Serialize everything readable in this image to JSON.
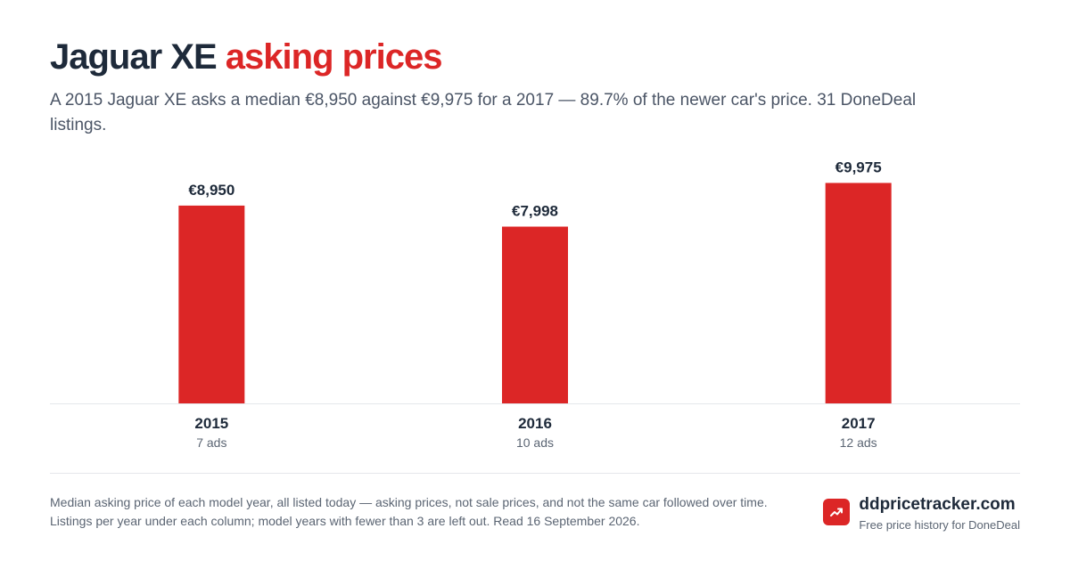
{
  "header": {
    "title_main": "Jaguar XE",
    "title_accent": "asking prices",
    "subtitle": "A 2015 Jaguar XE asks a median €8,950 against €9,975 for a 2017 — 89.7% of the newer car's price. 31 DoneDeal listings."
  },
  "chart_data": {
    "type": "bar",
    "categories": [
      "2015",
      "2016",
      "2017"
    ],
    "values": [
      8950,
      7998,
      9975
    ],
    "value_labels": [
      "€8,950",
      "€7,998",
      "€9,975"
    ],
    "sublabels": [
      "7 ads",
      "10 ads",
      "12 ads"
    ],
    "ylim": [
      0,
      11000
    ],
    "grid": false,
    "bar_color": "#dc2626"
  },
  "footer": {
    "note": "Median asking price of each model year, all listed today — asking prices, not sale prices, and not the same car followed over time. Listings per year under each column; model years with fewer than 3 are left out. Read 16 September 2026.",
    "brand_name": "ddpricetracker.com",
    "brand_tagline": "Free price history for DoneDeal",
    "brand_icon": "trend-up-icon"
  },
  "colors": {
    "accent": "#dc2626",
    "text": "#1e2a3a",
    "muted": "#5b6573"
  }
}
